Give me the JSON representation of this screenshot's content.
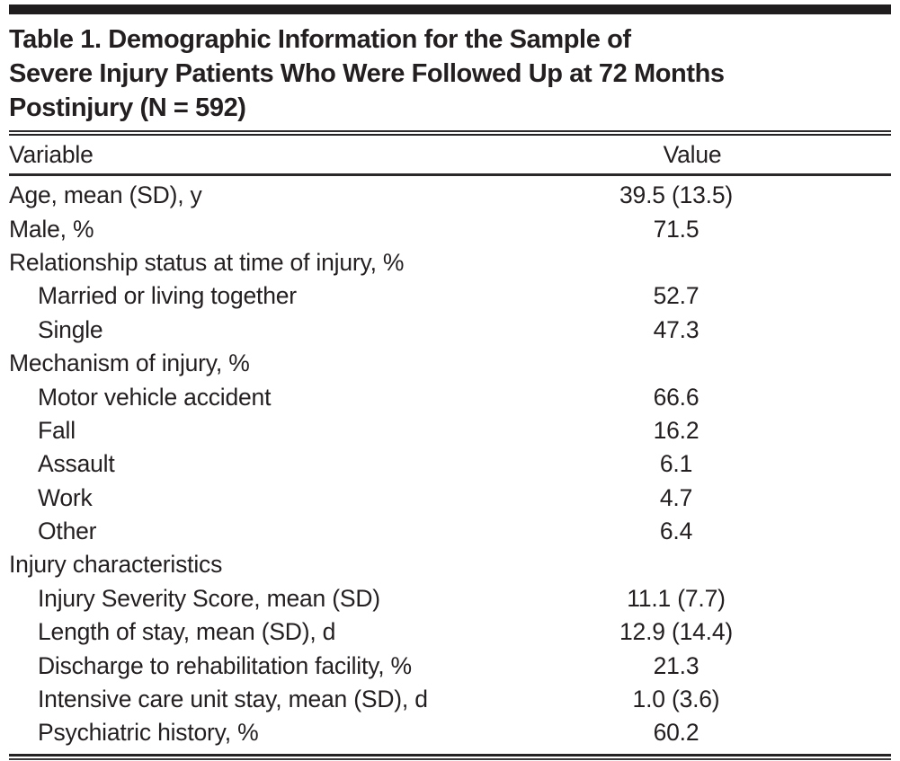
{
  "table": {
    "title_lines": [
      "Table 1. Demographic Information for the Sample of",
      "Severe Injury Patients Who Were Followed Up at 72 Months",
      "Postinjury (N = 592)"
    ],
    "columns": {
      "variable": "Variable",
      "value": "Value"
    },
    "rows": [
      {
        "label": "Age, mean (SD), y",
        "value": "39.5 (13.5)",
        "indent": 0
      },
      {
        "label": "Male, %",
        "value": "71.5",
        "indent": 0
      },
      {
        "label": "Relationship status at time of injury, %",
        "value": "",
        "indent": 0
      },
      {
        "label": "Married or living together",
        "value": "52.7",
        "indent": 1
      },
      {
        "label": "Single",
        "value": "47.3",
        "indent": 1
      },
      {
        "label": "Mechanism of injury, %",
        "value": "",
        "indent": 0
      },
      {
        "label": "Motor vehicle accident",
        "value": "66.6",
        "indent": 1
      },
      {
        "label": "Fall",
        "value": "16.2",
        "indent": 1
      },
      {
        "label": "Assault",
        "value": "6.1",
        "indent": 1
      },
      {
        "label": "Work",
        "value": "4.7",
        "indent": 1
      },
      {
        "label": "Other",
        "value": "6.4",
        "indent": 1
      },
      {
        "label": "Injury characteristics",
        "value": "",
        "indent": 0
      },
      {
        "label": "Injury Severity Score, mean (SD)",
        "value": "11.1 (7.7)",
        "indent": 1
      },
      {
        "label": "Length of stay, mean (SD), d",
        "value": "12.9 (14.4)",
        "indent": 1
      },
      {
        "label": "Discharge to rehabilitation facility, %",
        "value": "21.3",
        "indent": 1
      },
      {
        "label": "Intensive care unit stay, mean (SD), d",
        "value": "1.0 (3.6)",
        "indent": 1
      },
      {
        "label": "Psychiatric history, %",
        "value": "60.2",
        "indent": 1
      }
    ],
    "colors": {
      "text": "#231f20",
      "rule": "#242223",
      "background": "#ffffff"
    }
  }
}
